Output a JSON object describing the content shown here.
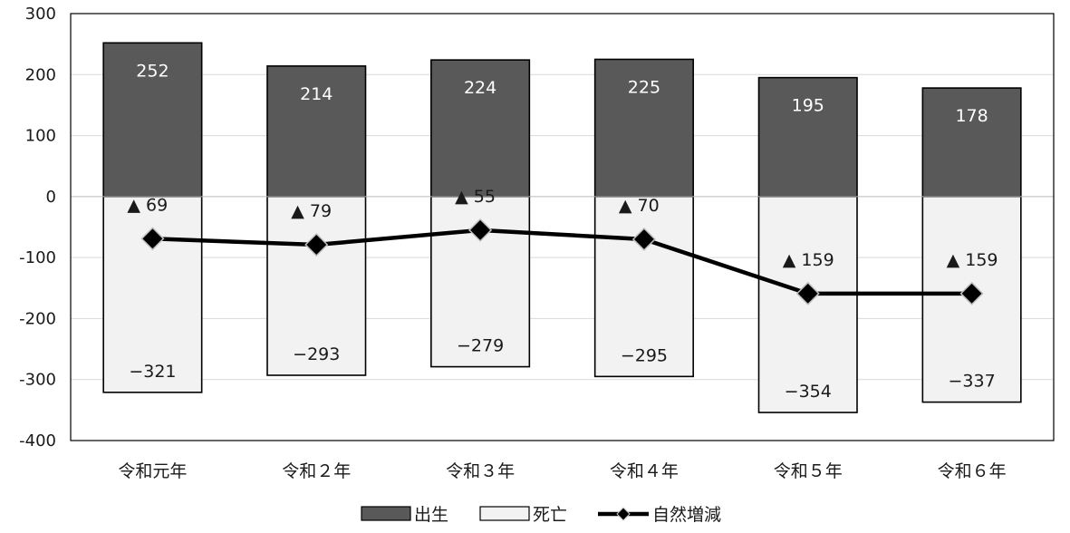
{
  "chart_data": {
    "type": "bar",
    "categories": [
      "令和元年",
      "令和２年",
      "令和３年",
      "令和４年",
      "令和５年",
      "令和６年"
    ],
    "series": [
      {
        "name": "出生",
        "kind": "bar",
        "color": "#595959",
        "values": [
          252,
          214,
          224,
          225,
          195,
          178
        ],
        "labels": [
          "252",
          "214",
          "224",
          "225",
          "195",
          "178"
        ]
      },
      {
        "name": "死亡",
        "kind": "bar",
        "color": "#f2f2f2",
        "values": [
          -321,
          -293,
          -279,
          -295,
          -354,
          -337
        ],
        "labels": [
          "−321",
          "−293",
          "−279",
          "−295",
          "−354",
          "−337"
        ]
      },
      {
        "name": "自然増減",
        "kind": "line",
        "color": "#000000",
        "values": [
          -69,
          -79,
          -55,
          -70,
          -159,
          -159
        ],
        "labels": [
          "▲ 69",
          "▲ 79",
          "▲ 55",
          "▲ 70",
          "▲ 159",
          "▲ 159"
        ]
      }
    ],
    "ylim": [
      -400,
      300
    ],
    "yticks": [
      "300",
      "200",
      "100",
      "0",
      "-100",
      "-200",
      "-300",
      "-400"
    ],
    "grid": true,
    "legend_position": "bottom"
  }
}
